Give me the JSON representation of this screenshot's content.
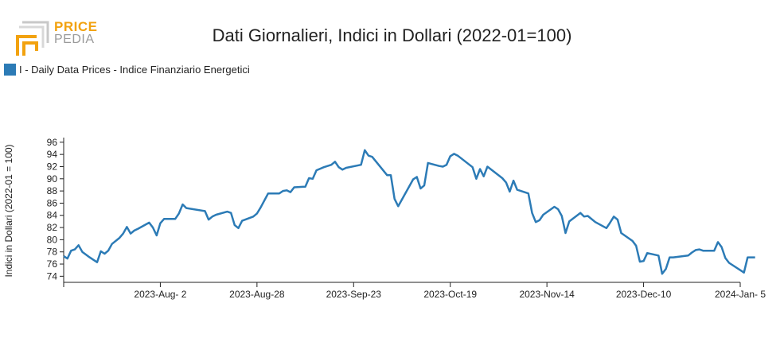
{
  "logo": {
    "line1": "PRICE",
    "line2": "PEDIA",
    "color_primary": "#f2a20f",
    "color_secondary": "#9a9a9a"
  },
  "title": "Dati Giornalieri, Indici in Dollari (2022-01=100)",
  "legend": {
    "label": "I - Daily Data Prices - Indice Finanziario Energetici",
    "color": "#2c7bb6"
  },
  "chart_data": {
    "type": "line",
    "title": "Dati Giornalieri, Indici in Dollari (2022-01=100)",
    "ylabel": "Indici in Dollari (2022-01 = 100)",
    "xlabel": "",
    "ylim": [
      73,
      96.5
    ],
    "yticks": [
      74,
      76,
      78,
      80,
      82,
      84,
      86,
      88,
      90,
      92,
      94,
      96
    ],
    "xlim": [
      "2023-07-07",
      "2024-01-05"
    ],
    "xticks": [
      {
        "date": "2023-08-02",
        "label": "2023-Aug- 2"
      },
      {
        "date": "2023-08-28",
        "label": "2023-Aug-28"
      },
      {
        "date": "2023-09-23",
        "label": "2023-Sep-23"
      },
      {
        "date": "2023-10-19",
        "label": "2023-Oct-19"
      },
      {
        "date": "2023-11-14",
        "label": "2023-Nov-14"
      },
      {
        "date": "2023-12-10",
        "label": "2023-Dec-10"
      },
      {
        "date": "2024-01-05",
        "label": "2024-Jan- 5"
      }
    ],
    "series": [
      {
        "name": "I - Daily Data Prices - Indice Finanziario Energetici",
        "color": "#2c7bb6",
        "points": [
          [
            "2023-07-07",
            77.3
          ],
          [
            "2023-07-08",
            76.9
          ],
          [
            "2023-07-09",
            78.2
          ],
          [
            "2023-07-10",
            78.4
          ],
          [
            "2023-07-11",
            79.1
          ],
          [
            "2023-07-12",
            78.0
          ],
          [
            "2023-07-14",
            77.1
          ],
          [
            "2023-07-15",
            76.7
          ],
          [
            "2023-07-16",
            76.3
          ],
          [
            "2023-07-17",
            78.1
          ],
          [
            "2023-07-18",
            77.7
          ],
          [
            "2023-07-19",
            78.2
          ],
          [
            "2023-07-20",
            79.3
          ],
          [
            "2023-07-22",
            80.3
          ],
          [
            "2023-07-23",
            81.0
          ],
          [
            "2023-07-24",
            82.1
          ],
          [
            "2023-07-25",
            81.0
          ],
          [
            "2023-07-26",
            81.5
          ],
          [
            "2023-07-27",
            81.8
          ],
          [
            "2023-07-30",
            82.8
          ],
          [
            "2023-07-31",
            82.0
          ],
          [
            "2023-08-01",
            80.7
          ],
          [
            "2023-08-02",
            82.7
          ],
          [
            "2023-08-03",
            83.4
          ],
          [
            "2023-08-06",
            83.4
          ],
          [
            "2023-08-07",
            84.3
          ],
          [
            "2023-08-08",
            85.8
          ],
          [
            "2023-08-09",
            85.2
          ],
          [
            "2023-08-14",
            84.7
          ],
          [
            "2023-08-15",
            83.3
          ],
          [
            "2023-08-16",
            83.8
          ],
          [
            "2023-08-17",
            84.1
          ],
          [
            "2023-08-20",
            84.6
          ],
          [
            "2023-08-21",
            84.4
          ],
          [
            "2023-08-22",
            82.4
          ],
          [
            "2023-08-23",
            81.9
          ],
          [
            "2023-08-24",
            83.1
          ],
          [
            "2023-08-27",
            83.8
          ],
          [
            "2023-08-28",
            84.3
          ],
          [
            "2023-08-29",
            85.3
          ],
          [
            "2023-08-31",
            87.6
          ],
          [
            "2023-09-03",
            87.6
          ],
          [
            "2023-09-04",
            88.0
          ],
          [
            "2023-09-05",
            88.1
          ],
          [
            "2023-09-06",
            87.8
          ],
          [
            "2023-09-07",
            88.6
          ],
          [
            "2023-09-10",
            88.7
          ],
          [
            "2023-09-11",
            90.1
          ],
          [
            "2023-09-12",
            90.0
          ],
          [
            "2023-09-13",
            91.4
          ],
          [
            "2023-09-15",
            91.9
          ],
          [
            "2023-09-17",
            92.3
          ],
          [
            "2023-09-18",
            92.8
          ],
          [
            "2023-09-19",
            91.9
          ],
          [
            "2023-09-20",
            91.5
          ],
          [
            "2023-09-21",
            91.8
          ],
          [
            "2023-09-25",
            92.3
          ],
          [
            "2023-09-26",
            94.7
          ],
          [
            "2023-09-27",
            93.8
          ],
          [
            "2023-09-28",
            93.6
          ],
          [
            "2023-10-02",
            90.6
          ],
          [
            "2023-10-03",
            90.6
          ],
          [
            "2023-10-04",
            86.7
          ],
          [
            "2023-10-05",
            85.5
          ],
          [
            "2023-10-09",
            89.9
          ],
          [
            "2023-10-10",
            90.3
          ],
          [
            "2023-10-11",
            88.4
          ],
          [
            "2023-10-12",
            88.9
          ],
          [
            "2023-10-13",
            92.6
          ],
          [
            "2023-10-16",
            92.1
          ],
          [
            "2023-10-17",
            92.0
          ],
          [
            "2023-10-18",
            92.3
          ],
          [
            "2023-10-19",
            93.7
          ],
          [
            "2023-10-20",
            94.1
          ],
          [
            "2023-10-21",
            93.8
          ],
          [
            "2023-10-25",
            91.9
          ],
          [
            "2023-10-26",
            90.0
          ],
          [
            "2023-10-27",
            91.6
          ],
          [
            "2023-10-28",
            90.4
          ],
          [
            "2023-10-29",
            92.0
          ],
          [
            "2023-11-02",
            90.1
          ],
          [
            "2023-11-03",
            89.4
          ],
          [
            "2023-11-04",
            87.9
          ],
          [
            "2023-11-05",
            89.7
          ],
          [
            "2023-11-06",
            88.2
          ],
          [
            "2023-11-09",
            87.6
          ],
          [
            "2023-11-10",
            84.4
          ],
          [
            "2023-11-11",
            82.9
          ],
          [
            "2023-11-12",
            83.2
          ],
          [
            "2023-11-13",
            84.1
          ],
          [
            "2023-11-16",
            85.4
          ],
          [
            "2023-11-17",
            85.0
          ],
          [
            "2023-11-18",
            83.9
          ],
          [
            "2023-11-19",
            81.1
          ],
          [
            "2023-11-20",
            83.0
          ],
          [
            "2023-11-23",
            84.4
          ],
          [
            "2023-11-24",
            83.8
          ],
          [
            "2023-11-25",
            83.9
          ],
          [
            "2023-11-27",
            82.9
          ],
          [
            "2023-11-30",
            81.9
          ],
          [
            "2023-12-01",
            82.8
          ],
          [
            "2023-12-02",
            83.8
          ],
          [
            "2023-12-03",
            83.3
          ],
          [
            "2023-12-04",
            81.1
          ],
          [
            "2023-12-07",
            79.8
          ],
          [
            "2023-12-08",
            79.0
          ],
          [
            "2023-12-09",
            76.4
          ],
          [
            "2023-12-10",
            76.5
          ],
          [
            "2023-12-11",
            77.8
          ],
          [
            "2023-12-14",
            77.4
          ],
          [
            "2023-12-15",
            74.4
          ],
          [
            "2023-12-16",
            75.2
          ],
          [
            "2023-12-17",
            77.1
          ],
          [
            "2023-12-18",
            77.1
          ],
          [
            "2023-12-22",
            77.4
          ],
          [
            "2023-12-23",
            77.9
          ],
          [
            "2023-12-24",
            78.3
          ],
          [
            "2023-12-25",
            78.4
          ],
          [
            "2023-12-26",
            78.2
          ],
          [
            "2023-12-29",
            78.2
          ],
          [
            "2023-12-30",
            79.6
          ],
          [
            "2023-12-31",
            78.8
          ],
          [
            "2024-01-01",
            77.0
          ],
          [
            "2024-01-02",
            76.2
          ],
          [
            "2024-01-06",
            74.6
          ],
          [
            "2024-01-07",
            77.1
          ],
          [
            "2024-01-09",
            77.1
          ]
        ]
      }
    ]
  }
}
